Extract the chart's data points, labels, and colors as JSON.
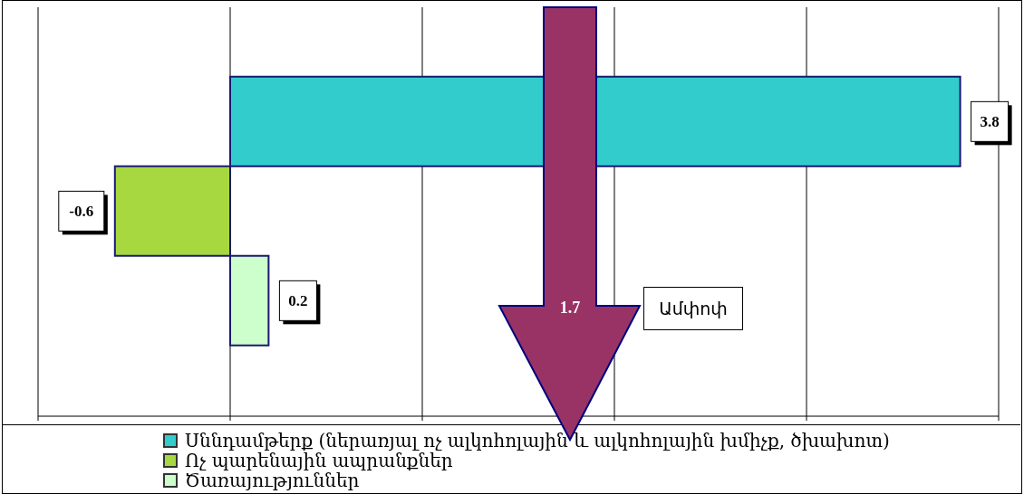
{
  "chart_data": {
    "type": "bar",
    "orientation": "horizontal",
    "categories": [
      null
    ],
    "series": [
      {
        "name": "Սննդամթերք (ներառյալ ոչ ալկոհոլային և ալկոհոլային խմիչք, ծխախոտ)",
        "color": "#33cccc",
        "values": [
          3.8
        ]
      },
      {
        "name": "Ոչ պարենային ապրանքներ",
        "color": "#a8d840",
        "values": [
          -0.6
        ]
      },
      {
        "name": "Ծառայություններ",
        "color": "#ccffcc",
        "values": [
          0.2
        ]
      }
    ],
    "xlim": [
      -1,
      4
    ],
    "xticks": [
      {
        "value": -1,
        "label": null
      },
      {
        "value": 0,
        "label": null
      },
      {
        "value": 1,
        "label": null
      },
      {
        "value": 2,
        "label": null
      },
      {
        "value": 3,
        "label": null
      },
      {
        "value": 4,
        "label": null
      }
    ],
    "grid": "x",
    "data_labels": true,
    "legend": "bottom",
    "annotations": [
      "1.7",
      "Ամփոփ"
    ]
  }
}
